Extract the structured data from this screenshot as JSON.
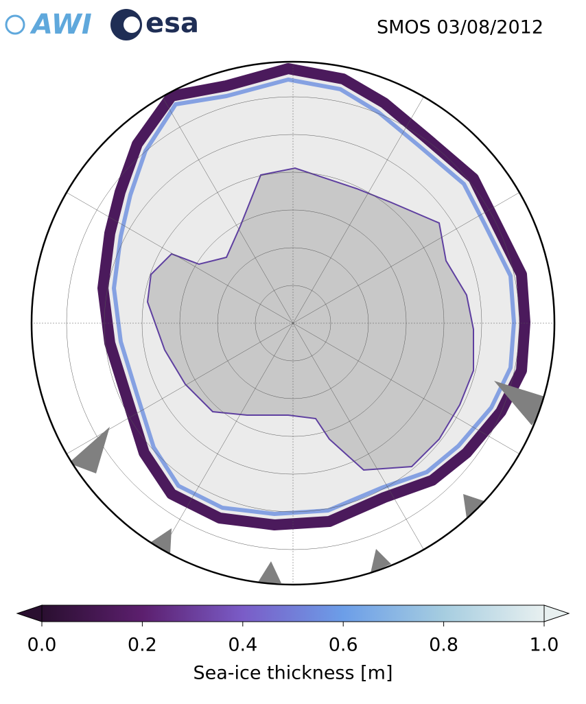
{
  "logos": {
    "awi": "AWI",
    "esa": "esa"
  },
  "title": "SMOS 03/08/2012",
  "colorbar": {
    "label": "Sea-ice thickness [m]",
    "lim": [
      0,
      1
    ],
    "ticks": [
      {
        "value": 0,
        "label": "0.0"
      },
      {
        "value": 0.2,
        "label": "0.2"
      },
      {
        "value": 0.4,
        "label": "0.4"
      },
      {
        "value": 0.6,
        "label": "0.6"
      },
      {
        "value": 0.8,
        "label": "0.8"
      },
      {
        "value": 1,
        "label": "1.0"
      }
    ],
    "colors": [
      "#2a0f30",
      "#5c1f6e",
      "#7a5cc7",
      "#6c9ee8",
      "#a6cde0",
      "#e8f0f0"
    ]
  }
}
